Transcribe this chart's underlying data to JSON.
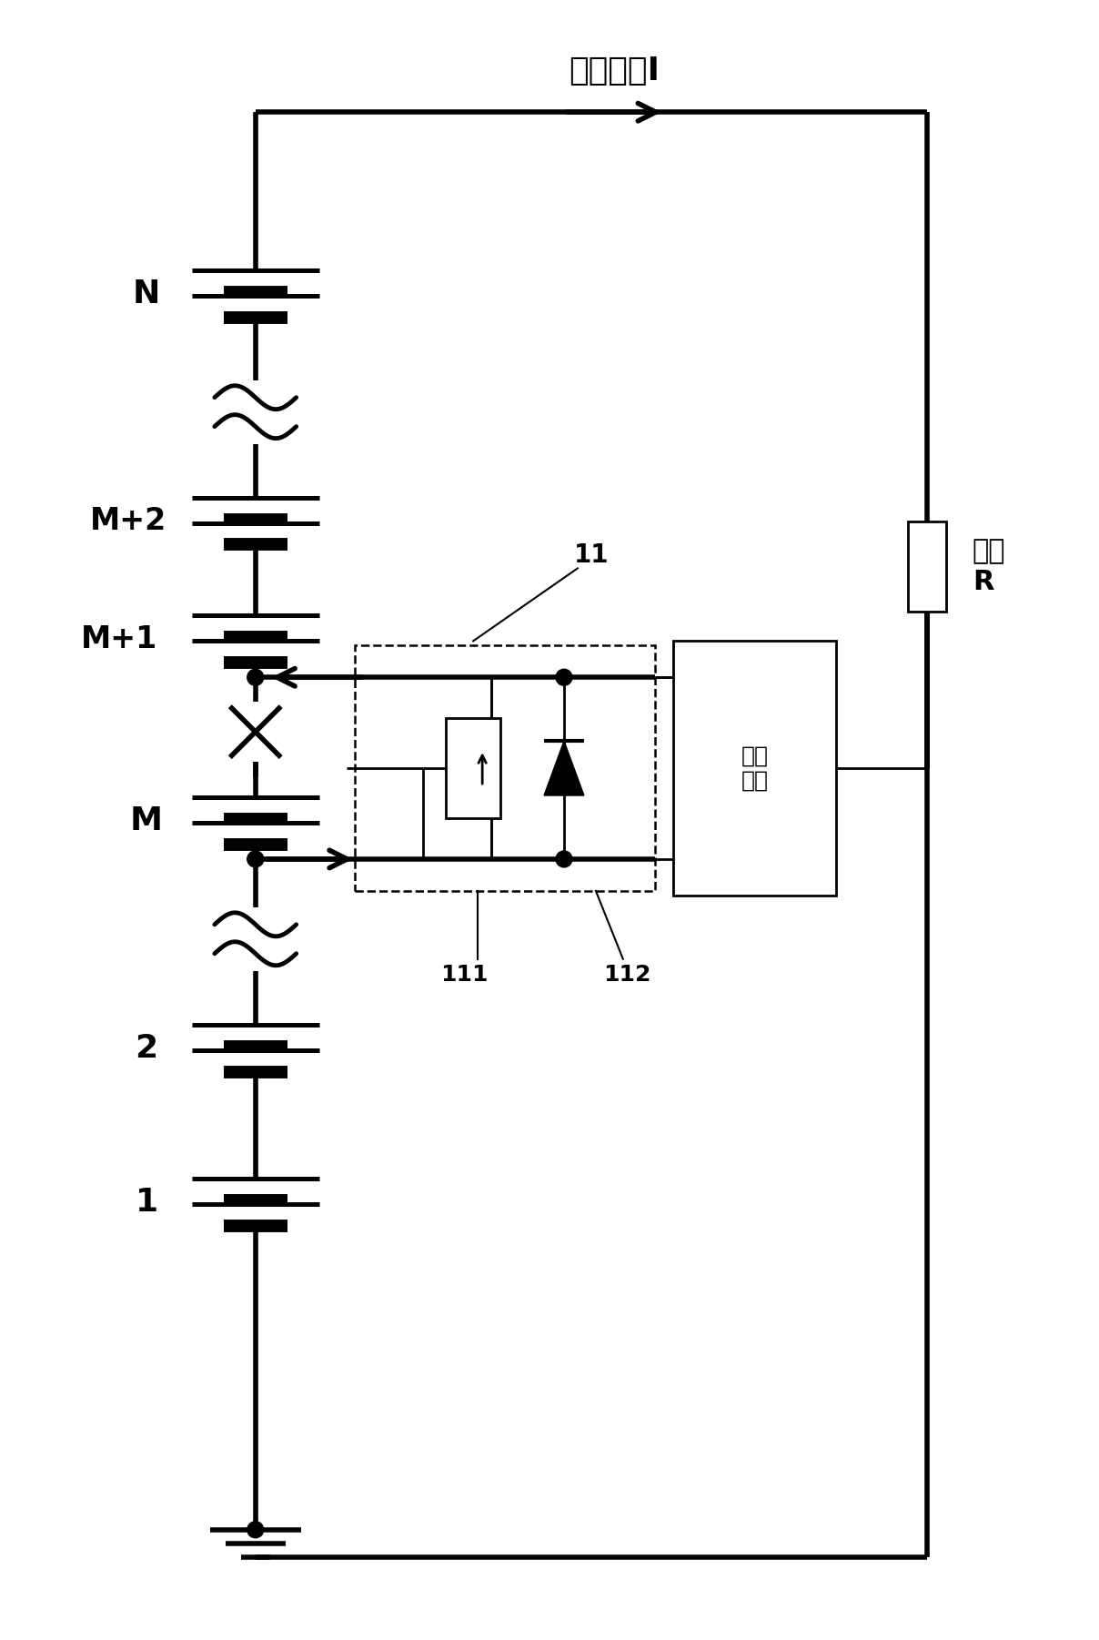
{
  "bg_color": "#ffffff",
  "lw_main": 4.0,
  "lw_thin": 2.0,
  "lw_dash": 1.8,
  "fig_width": 12.08,
  "fig_height": 18.02,
  "label_current": "放电电流I",
  "label_N": "N",
  "label_M2": "M+2",
  "label_M1": "M+1",
  "label_M": "M",
  "label_2": "2",
  "label_1": "1",
  "label_load": "负载\nR",
  "label_other": "其它\n电路",
  "label_11": "11",
  "label_111": "111",
  "label_112": "112"
}
